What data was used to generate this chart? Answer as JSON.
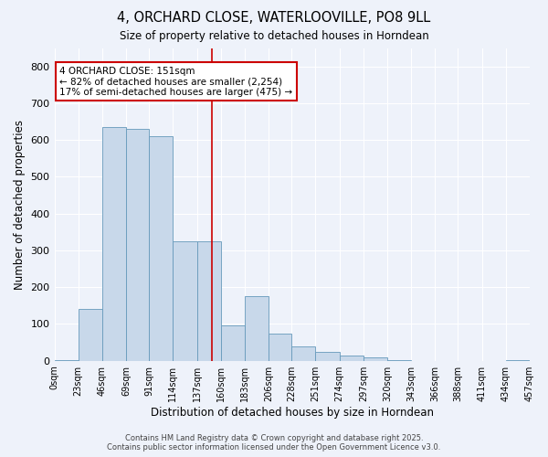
{
  "title": "4, ORCHARD CLOSE, WATERLOOVILLE, PO8 9LL",
  "subtitle": "Size of property relative to detached houses in Horndean",
  "xlabel": "Distribution of detached houses by size in Horndean",
  "ylabel": "Number of detached properties",
  "bin_edges": [
    0,
    23,
    46,
    69,
    91,
    114,
    137,
    160,
    183,
    206,
    228,
    251,
    274,
    297,
    320,
    343,
    366,
    388,
    411,
    434,
    457
  ],
  "bin_labels": [
    "0sqm",
    "23sqm",
    "46sqm",
    "69sqm",
    "91sqm",
    "114sqm",
    "137sqm",
    "160sqm",
    "183sqm",
    "206sqm",
    "228sqm",
    "251sqm",
    "274sqm",
    "297sqm",
    "320sqm",
    "343sqm",
    "366sqm",
    "388sqm",
    "411sqm",
    "434sqm",
    "457sqm"
  ],
  "bar_heights": [
    2,
    140,
    635,
    630,
    610,
    325,
    325,
    95,
    175,
    75,
    40,
    25,
    15,
    10,
    3,
    0,
    0,
    0,
    0,
    2
  ],
  "bar_color": "#c8d8ea",
  "bar_edge_color": "#6699bb",
  "vline_x": 151,
  "vline_color": "#cc0000",
  "annotation_text": "4 ORCHARD CLOSE: 151sqm\n← 82% of detached houses are smaller (2,254)\n17% of semi-detached houses are larger (475) →",
  "annotation_box_color": "#ffffff",
  "annotation_box_edge": "#cc0000",
  "ylim": [
    0,
    850
  ],
  "yticks": [
    0,
    100,
    200,
    300,
    400,
    500,
    600,
    700,
    800
  ],
  "bg_color": "#eef2fa",
  "grid_color": "#ffffff",
  "footer_line1": "Contains HM Land Registry data © Crown copyright and database right 2025.",
  "footer_line2": "Contains public sector information licensed under the Open Government Licence v3.0."
}
